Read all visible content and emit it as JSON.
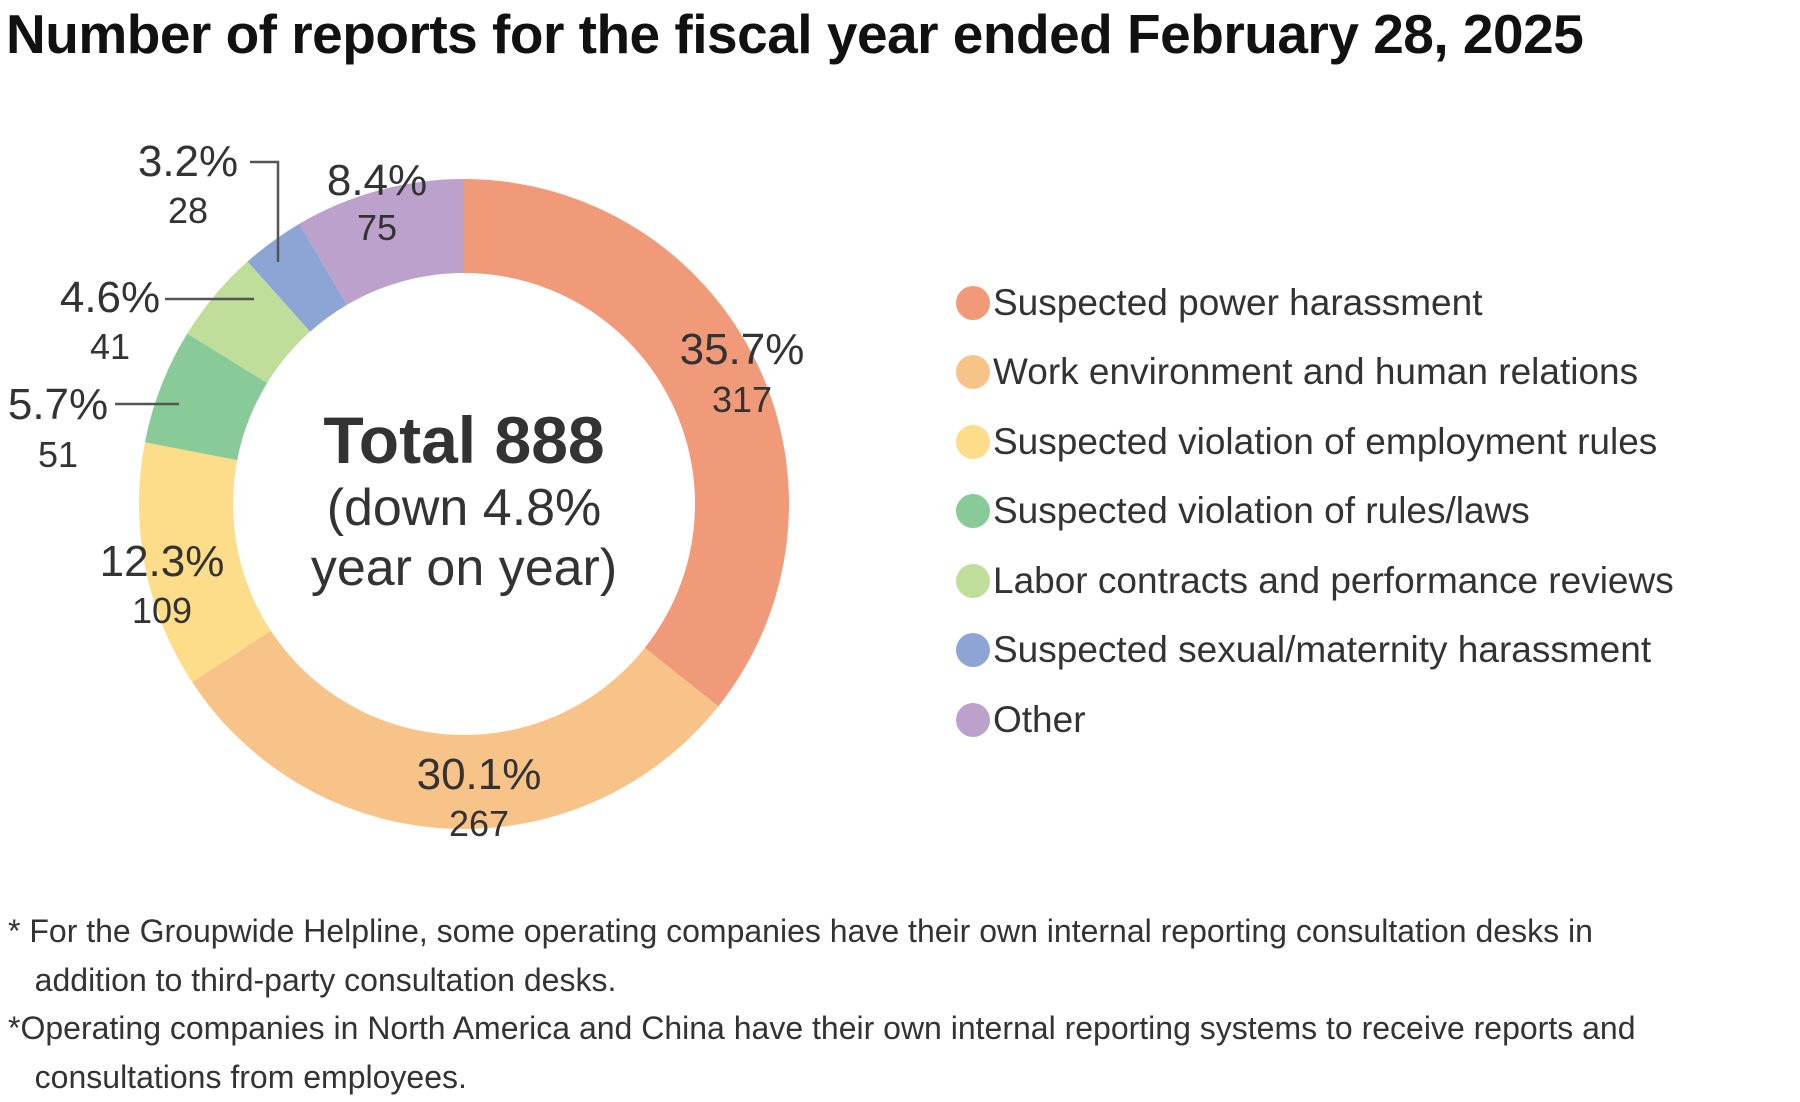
{
  "title": "Number of reports for the fiscal year ended February 28, 2025",
  "chart_data": {
    "type": "pie",
    "donut": true,
    "title": "Number of reports for the fiscal year ended February 28, 2025",
    "center_text": {
      "total": "Total 888",
      "line2": "(down 4.8%",
      "line3": "year on year)"
    },
    "legend_position": "right",
    "slices": [
      {
        "name": "Suspected power harassment",
        "value": 317,
        "percent_label": "35.7%",
        "count_label": "317",
        "color": "#F19A79"
      },
      {
        "name": "Work environment and human relations",
        "value": 267,
        "percent_label": "30.1%",
        "count_label": "267",
        "color": "#F8C389"
      },
      {
        "name": "Suspected violation of employment rules",
        "value": 109,
        "percent_label": "12.3%",
        "count_label": "109",
        "color": "#FDDC8A"
      },
      {
        "name": "Suspected violation of rules/laws",
        "value": 51,
        "percent_label": "5.7%",
        "count_label": "51",
        "color": "#89CB98"
      },
      {
        "name": "Labor contracts and performance reviews",
        "value": 41,
        "percent_label": "4.6%",
        "count_label": "41",
        "color": "#C0DD9A"
      },
      {
        "name": "Suspected sexual/maternity harassment",
        "value": 28,
        "percent_label": "3.2%",
        "count_label": "28",
        "color": "#8DA5D5"
      },
      {
        "name": "Other",
        "value": 75,
        "percent_label": "8.4%",
        "count_label": "75",
        "color": "#BBA1CC"
      }
    ]
  },
  "footnotes": [
    "* For the Groupwide Helpline, some operating companies have their own internal reporting consultation desks in",
    "   addition to third-party consultation desks.",
    "*Operating companies in North America and China have their own internal reporting systems to receive reports and",
    "   consultations from employees."
  ]
}
